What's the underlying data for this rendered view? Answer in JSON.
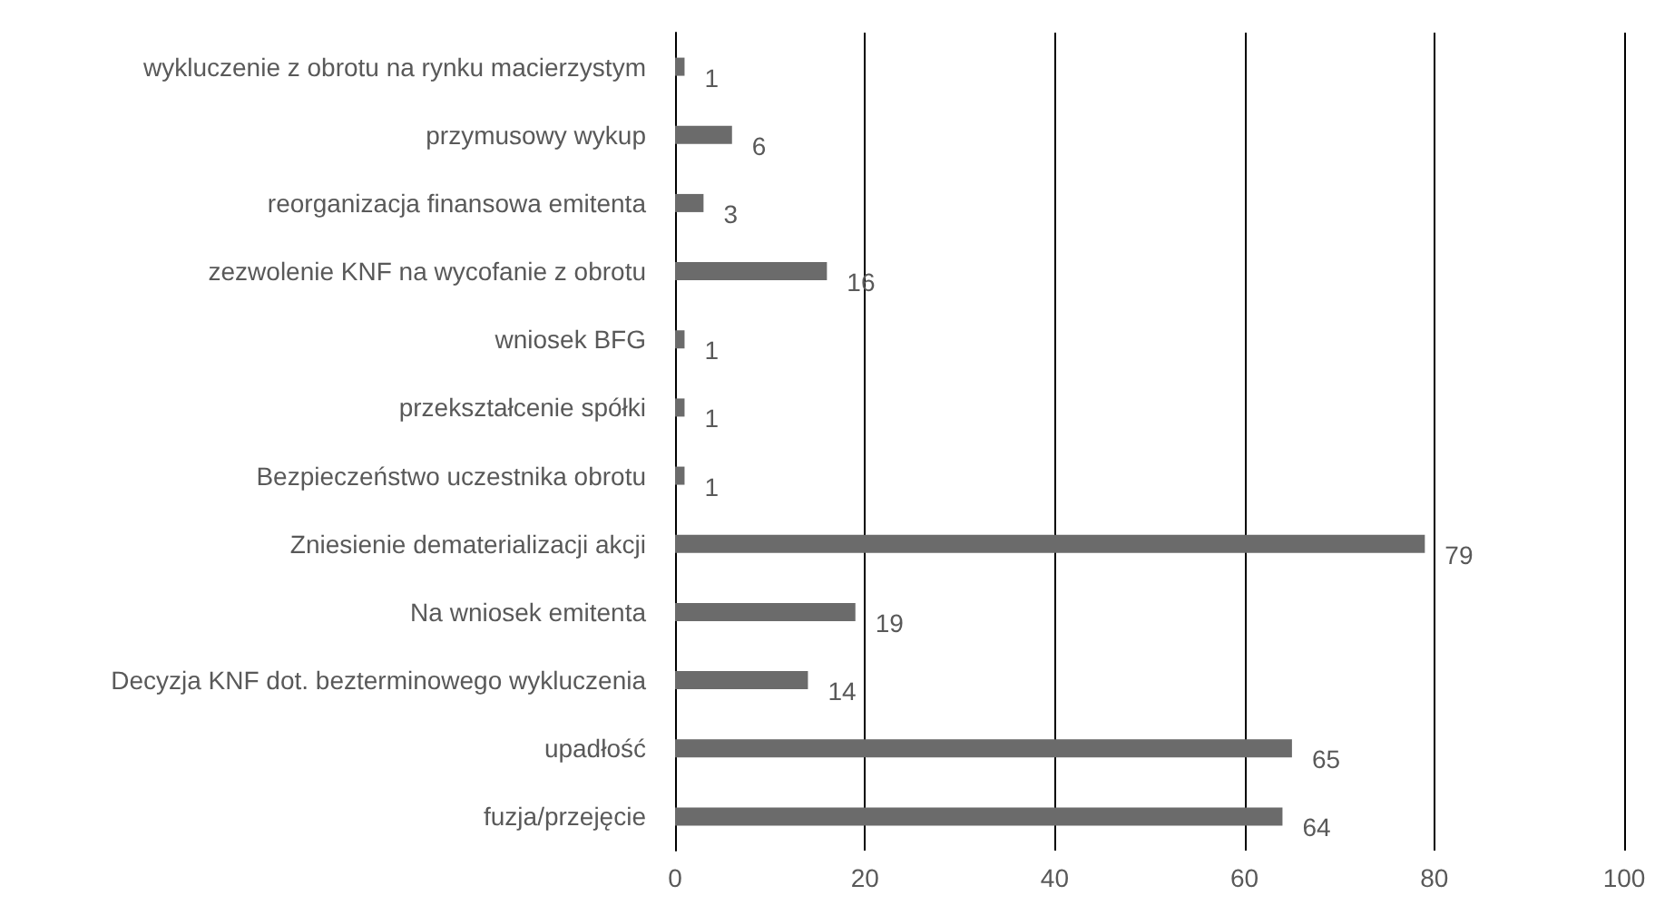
{
  "chart_data": {
    "type": "bar",
    "orientation": "horizontal",
    "categories": [
      "wykluczenie z obrotu na rynku macierzystym",
      "przymusowy wykup",
      "reorganizacja finansowa emitenta",
      "zezwolenie KNF na wycofanie z obrotu",
      "wniosek BFG",
      "przekształcenie spółki",
      "Bezpieczeństwo uczestnika obrotu",
      "Zniesienie dematerializacji akcji",
      "Na wniosek emitenta",
      "Decyzja KNF dot. bezterminowego wykluczenia",
      "upadłość",
      "fuzja/przejęcie"
    ],
    "values": [
      1,
      6,
      3,
      16,
      1,
      1,
      1,
      79,
      19,
      14,
      65,
      64
    ],
    "color": "#6b6b6b",
    "xlim": [
      0,
      100
    ],
    "xticks": [
      0,
      20,
      40,
      60,
      80,
      100
    ],
    "grid": "x",
    "data_labels": true
  }
}
